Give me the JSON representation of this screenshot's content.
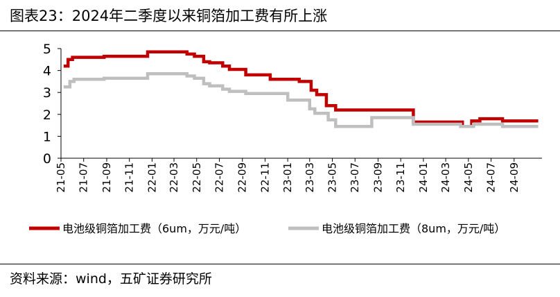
{
  "title": "图表23：2024年二季度以来铜箔加工费有所上涨",
  "source": "资料来源：wind，五矿证券研究所",
  "chart_data": {
    "type": "line",
    "x_tick_labels": [
      "21-05",
      "21-07",
      "21-09",
      "21-11",
      "22-01",
      "22-03",
      "22-05",
      "22-07",
      "22-09",
      "22-11",
      "23-01",
      "23-03",
      "23-05",
      "23-07",
      "23-09",
      "23-11",
      "24-01",
      "24-03",
      "24-05",
      "24-07",
      "24-09"
    ],
    "y_tick_labels": [
      "0",
      "1",
      "2",
      "3",
      "4",
      "5"
    ],
    "ylim": [
      0,
      5
    ],
    "xlim": [
      "2021-05-01",
      "2024-11-15"
    ],
    "grid": false,
    "legend_position": "bottom",
    "series": [
      {
        "name": "电池级铜箔加工费（6um，万元/吨）",
        "color": "#c00000",
        "points": [
          [
            "2021-05-08",
            4.2
          ],
          [
            "2021-05-20",
            4.2
          ],
          [
            "2021-05-20",
            4.5
          ],
          [
            "2021-06-01",
            4.5
          ],
          [
            "2021-06-01",
            4.6
          ],
          [
            "2021-08-25",
            4.6
          ],
          [
            "2021-08-25",
            4.65
          ],
          [
            "2021-12-20",
            4.65
          ],
          [
            "2021-12-20",
            4.85
          ],
          [
            "2022-04-05",
            4.85
          ],
          [
            "2022-04-05",
            4.75
          ],
          [
            "2022-04-25",
            4.75
          ],
          [
            "2022-04-25",
            4.65
          ],
          [
            "2022-05-20",
            4.65
          ],
          [
            "2022-05-20",
            4.4
          ],
          [
            "2022-06-05",
            4.4
          ],
          [
            "2022-06-05",
            4.35
          ],
          [
            "2022-07-10",
            4.35
          ],
          [
            "2022-07-10",
            4.2
          ],
          [
            "2022-07-28",
            4.2
          ],
          [
            "2022-07-28",
            4.05
          ],
          [
            "2022-09-10",
            4.05
          ],
          [
            "2022-09-10",
            3.8
          ],
          [
            "2022-11-15",
            3.8
          ],
          [
            "2022-11-15",
            3.6
          ],
          [
            "2023-02-01",
            3.6
          ],
          [
            "2023-02-01",
            3.5
          ],
          [
            "2023-03-05",
            3.5
          ],
          [
            "2023-03-05",
            3.1
          ],
          [
            "2023-03-20",
            3.1
          ],
          [
            "2023-03-20",
            2.9
          ],
          [
            "2023-04-15",
            2.9
          ],
          [
            "2023-04-15",
            2.4
          ],
          [
            "2023-05-10",
            2.4
          ],
          [
            "2023-05-10",
            2.2
          ],
          [
            "2023-12-05",
            2.2
          ],
          [
            "2023-12-05",
            1.65
          ],
          [
            "2024-04-15",
            1.65
          ],
          [
            "2024-04-15",
            1.45
          ],
          [
            "2024-05-10",
            1.45
          ],
          [
            "2024-05-10",
            1.7
          ],
          [
            "2024-06-01",
            1.7
          ],
          [
            "2024-06-01",
            1.8
          ],
          [
            "2024-08-01",
            1.8
          ],
          [
            "2024-08-01",
            1.7
          ],
          [
            "2024-11-05",
            1.7
          ]
        ]
      },
      {
        "name": "电池级铜箔加工费（8um，万元/吨）",
        "color": "#bfbfbf",
        "points": [
          [
            "2021-05-08",
            3.25
          ],
          [
            "2021-05-25",
            3.25
          ],
          [
            "2021-05-25",
            3.5
          ],
          [
            "2021-06-05",
            3.5
          ],
          [
            "2021-06-05",
            3.6
          ],
          [
            "2021-08-25",
            3.6
          ],
          [
            "2021-08-25",
            3.65
          ],
          [
            "2021-12-20",
            3.65
          ],
          [
            "2021-12-20",
            3.85
          ],
          [
            "2022-04-05",
            3.85
          ],
          [
            "2022-04-05",
            3.75
          ],
          [
            "2022-04-25",
            3.75
          ],
          [
            "2022-04-25",
            3.65
          ],
          [
            "2022-05-20",
            3.65
          ],
          [
            "2022-05-20",
            3.4
          ],
          [
            "2022-06-05",
            3.4
          ],
          [
            "2022-06-05",
            3.3
          ],
          [
            "2022-07-10",
            3.3
          ],
          [
            "2022-07-10",
            3.15
          ],
          [
            "2022-07-28",
            3.15
          ],
          [
            "2022-07-28",
            3.05
          ],
          [
            "2022-09-10",
            3.05
          ],
          [
            "2022-09-10",
            2.95
          ],
          [
            "2023-01-01",
            2.95
          ],
          [
            "2023-01-01",
            2.65
          ],
          [
            "2023-03-01",
            2.65
          ],
          [
            "2023-03-01",
            2.25
          ],
          [
            "2023-03-15",
            2.25
          ],
          [
            "2023-03-15",
            2.05
          ],
          [
            "2023-04-20",
            2.05
          ],
          [
            "2023-04-20",
            1.75
          ],
          [
            "2023-05-10",
            1.75
          ],
          [
            "2023-05-10",
            1.45
          ],
          [
            "2023-08-15",
            1.45
          ],
          [
            "2023-08-15",
            1.85
          ],
          [
            "2023-12-05",
            1.85
          ],
          [
            "2023-12-05",
            1.55
          ],
          [
            "2024-04-10",
            1.55
          ],
          [
            "2024-04-10",
            1.45
          ],
          [
            "2024-05-15",
            1.45
          ],
          [
            "2024-05-15",
            1.55
          ],
          [
            "2024-08-01",
            1.55
          ],
          [
            "2024-08-01",
            1.45
          ],
          [
            "2024-11-05",
            1.45
          ]
        ]
      }
    ]
  }
}
